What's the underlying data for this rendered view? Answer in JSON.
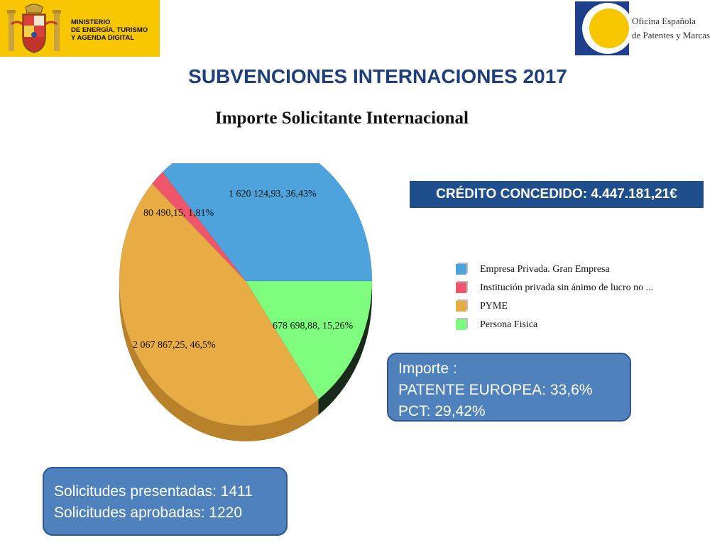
{
  "header": {
    "ministry_lines": [
      "MINISTERIO",
      "DE ENERGÍA, TURISMO",
      "Y AGENDA DIGITAL"
    ],
    "oepm_lines": [
      "Oficina Española",
      "de Patentes y Marcas"
    ]
  },
  "slide_title": "SUBVENCIONES INTERNACIONES 2017",
  "credit_text": "CRÉDITO CONCEDIDO: 4.447.181,21€",
  "importe_box": [
    "Importe :",
    "PATENTE EUROPEA: 33,6%",
    "PCT: 29,42%"
  ],
  "solicitudes_box": [
    "Solicitudes presentadas: 1411",
    "Solicitudes aprobadas: 1220"
  ],
  "colors": {
    "ministry_yellow": "#f7c600",
    "oepm_blue": "#1f3f8c",
    "oepm_yellow": "#f7c600",
    "title_blue": "#1f3f7a",
    "box_blue": "#4f81bd",
    "credit_blue": "#1f4e8c"
  },
  "chart_data": {
    "type": "pie",
    "title": "Importe Solicitante Internacional",
    "legend_position": "right",
    "slices": [
      {
        "name": "Empresa Privada. Gran Empresa",
        "value": 1620124.93,
        "percent": 36.43,
        "label": "1 620 124,93, 36,43%",
        "color": "#4fa3dc",
        "side_color": "#2f78a8"
      },
      {
        "name": "Persona Fisica",
        "value": 678698.88,
        "percent": 15.26,
        "label": "678 698,88, 15,26%",
        "color": "#7dfc7d",
        "side_color": "#1a2a1a"
      },
      {
        "name": "PYME",
        "value": 2067867.25,
        "percent": 46.5,
        "label": "2 067 867,25, 46,5%",
        "color": "#e8ac45",
        "side_color": "#b9822a"
      },
      {
        "name": "Institución privada sin ánimo de lucro no ...",
        "value": 80490.15,
        "percent": 1.81,
        "label": "80 490,15, 1,81%",
        "color": "#f0566b",
        "side_color": "#b33a4c"
      }
    ],
    "legend_order": [
      0,
      3,
      2,
      1
    ]
  }
}
